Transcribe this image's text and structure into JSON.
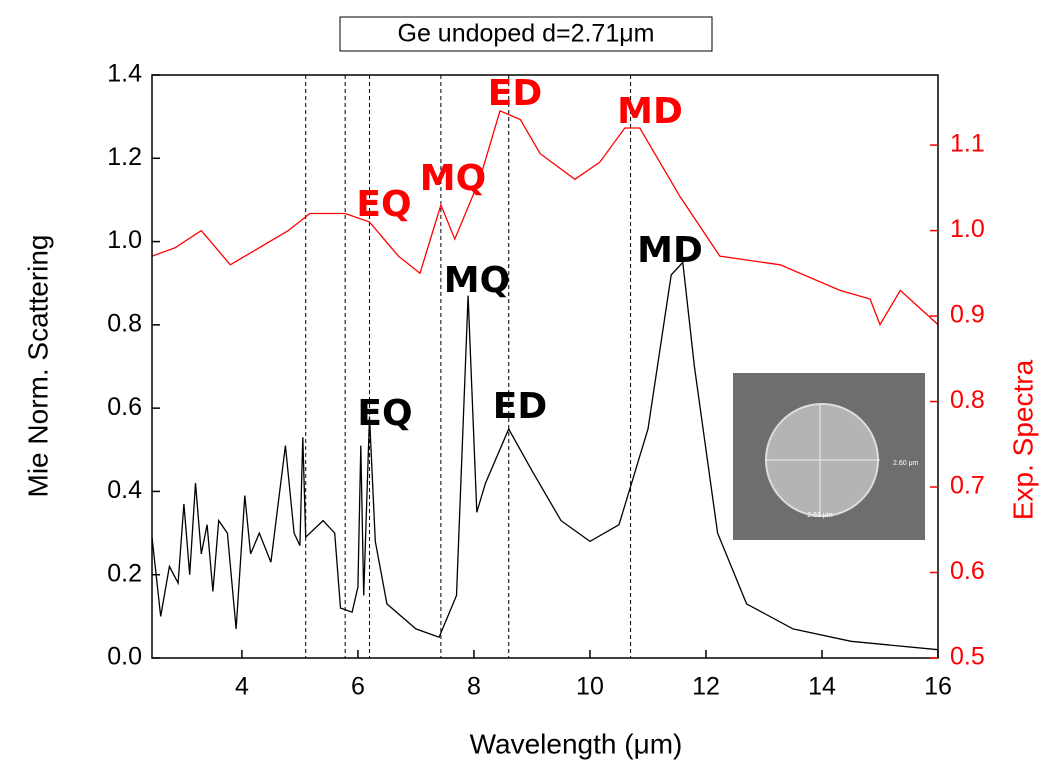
{
  "chart_data": {
    "type": "line",
    "title": "Ge undoped d=2.71μm",
    "x_label": "Wavelength (μm)",
    "y_label": "Mie Norm. Scattering",
    "y2_label": "Exp. Spectra",
    "xlim": [
      2.45,
      16
    ],
    "xticks": [
      4,
      6,
      8,
      10,
      12,
      14,
      16
    ],
    "ylim": [
      0,
      1.4
    ],
    "yticks": [
      {
        "value": 0,
        "label": "0.0"
      },
      0.2,
      0.4,
      0.6,
      0.8,
      {
        "value": 1,
        "label": "1.0"
      },
      1.2,
      1.4
    ],
    "y2lim": [
      0.5,
      1.182
    ],
    "y2ticks": [
      0.5,
      0.6,
      0.7,
      0.8,
      0.9,
      {
        "value": 1,
        "label": "1.0"
      },
      1.1
    ],
    "vlines": [
      5.1,
      5.78,
      6.2,
      7.43,
      8.6,
      10.7
    ],
    "series": [
      {
        "name": "Mie Norm. Scattering",
        "color": "#000000",
        "x": [
          2.45,
          2.6,
          2.75,
          2.9,
          3.0,
          3.1,
          3.2,
          3.3,
          3.4,
          3.5,
          3.6,
          3.75,
          3.9,
          4.05,
          4.15,
          4.3,
          4.5,
          4.75,
          4.9,
          5.0,
          5.05,
          5.1,
          5.4,
          5.6,
          5.7,
          5.9,
          6.0,
          6.05,
          6.1,
          6.2,
          6.3,
          6.5,
          7.0,
          7.4,
          7.7,
          7.9,
          8.05,
          8.2,
          8.6,
          9.0,
          9.5,
          10.0,
          10.5,
          11.0,
          11.4,
          11.6,
          11.8,
          12.2,
          12.7,
          13.5,
          14.5,
          16
        ],
        "values": [
          0.29,
          0.1,
          0.22,
          0.18,
          0.37,
          0.2,
          0.42,
          0.25,
          0.32,
          0.16,
          0.33,
          0.3,
          0.07,
          0.39,
          0.25,
          0.3,
          0.23,
          0.51,
          0.3,
          0.27,
          0.53,
          0.29,
          0.33,
          0.3,
          0.12,
          0.11,
          0.17,
          0.51,
          0.15,
          0.58,
          0.28,
          0.13,
          0.07,
          0.05,
          0.15,
          0.87,
          0.35,
          0.42,
          0.55,
          0.45,
          0.33,
          0.28,
          0.32,
          0.55,
          0.92,
          0.95,
          0.7,
          0.3,
          0.13,
          0.07,
          0.04,
          0.02
        ]
      },
      {
        "name": "Exp. Spectra",
        "color": "#ff0000",
        "axis": "y2",
        "x": [
          2.45,
          2.85,
          3.3,
          3.8,
          4.3,
          4.8,
          5.17,
          5.78,
          6.2,
          6.7,
          7.07,
          7.43,
          7.67,
          8.1,
          8.45,
          8.8,
          9.14,
          9.74,
          10.17,
          10.6,
          10.86,
          11.55,
          12.24,
          13.28,
          14.31,
          14.83,
          15.0,
          15.35,
          16.0
        ],
        "values": [
          0.97,
          0.98,
          1.0,
          0.96,
          0.98,
          1.0,
          1.02,
          1.02,
          1.01,
          0.97,
          0.95,
          1.03,
          0.99,
          1.06,
          1.14,
          1.13,
          1.09,
          1.06,
          1.08,
          1.12,
          1.12,
          1.04,
          0.97,
          0.96,
          0.93,
          0.92,
          0.89,
          0.93,
          0.89
        ]
      }
    ],
    "red_annotations": [
      "ED",
      "MQ",
      "EQ",
      "MD"
    ],
    "black_annotations": [
      "MQ",
      "EQ",
      "ED",
      "MD"
    ],
    "inset_labels": [
      "2.60 μm",
      "2.61 μm"
    ]
  }
}
